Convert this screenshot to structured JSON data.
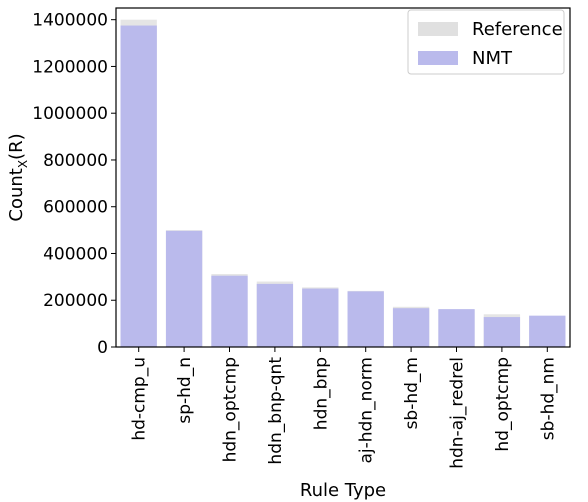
{
  "chart_data": {
    "type": "bar",
    "categories": [
      "hd-cmp_u",
      "sp-hd_n",
      "hdn_optcmp",
      "hdn_bnp-qnt",
      "hdn_bnp",
      "aj-hdn_norm",
      "sb-hd_m",
      "hdn-aj_redrel",
      "hd_optcmp",
      "sb-hd_nm"
    ],
    "series": [
      {
        "name": "Reference",
        "values": [
          1400000,
          500000,
          312000,
          280000,
          255000,
          240000,
          172000,
          160000,
          140000,
          133000
        ],
        "color": "#e0e0e0"
      },
      {
        "name": "NMT",
        "values": [
          1375000,
          497000,
          305000,
          270000,
          250000,
          238000,
          166000,
          162000,
          128000,
          134000
        ],
        "color": "#babaec"
      }
    ],
    "xlabel": "Rule Type",
    "ylabel_base": "Count",
    "ylabel_sub": "X",
    "ylabel_suffix": "(R)",
    "ylim": [
      0,
      1450000
    ],
    "yticks": [
      0,
      200000,
      400000,
      600000,
      800000,
      1000000,
      1200000,
      1400000
    ],
    "legend_position": "top-right",
    "grid": false
  }
}
